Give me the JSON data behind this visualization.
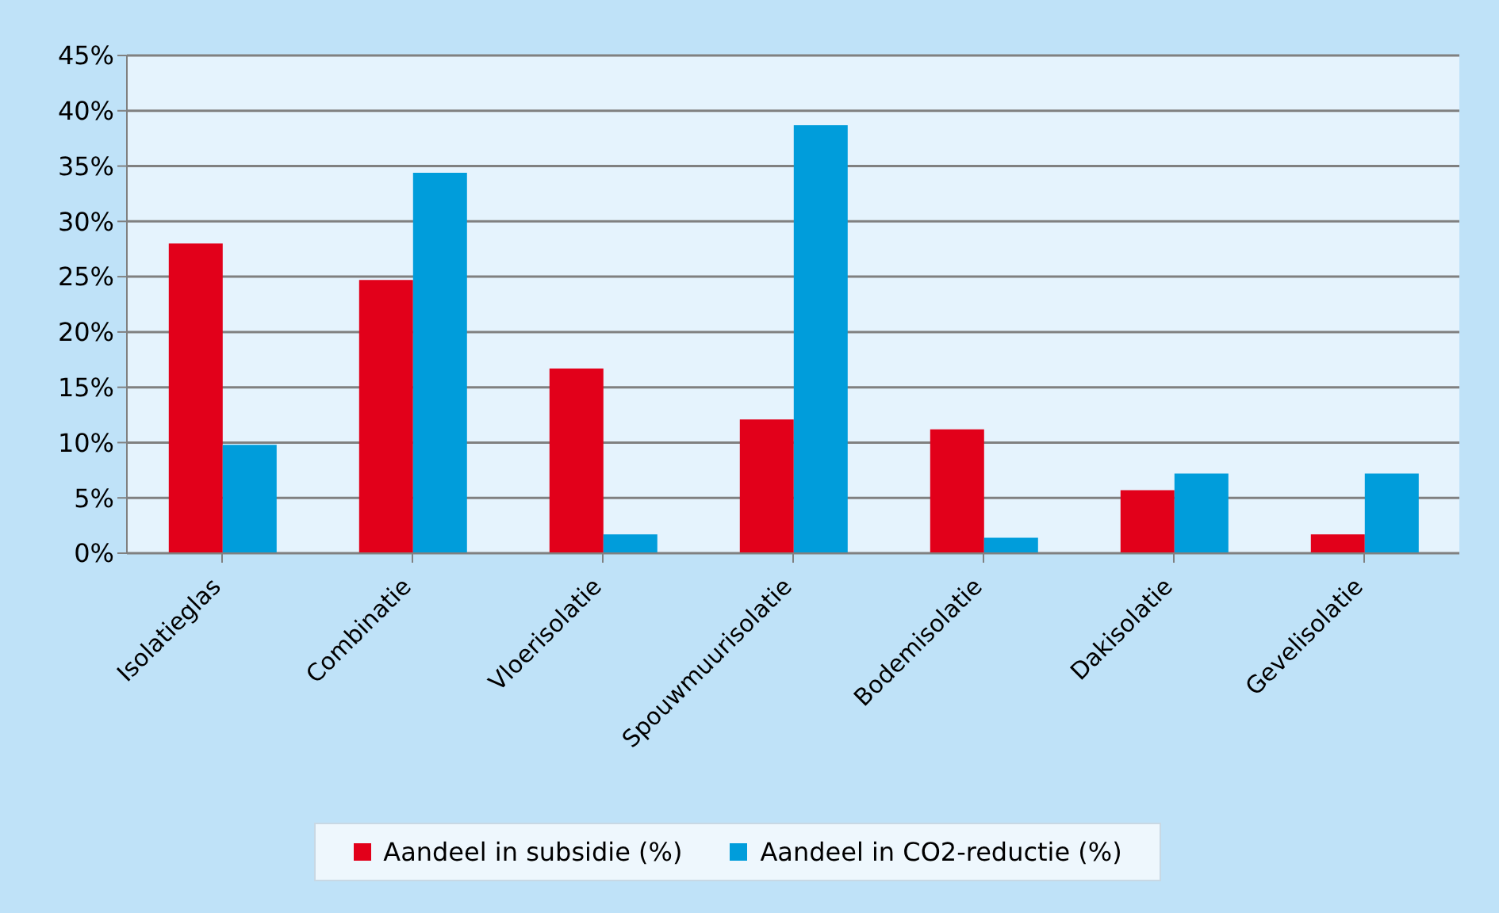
{
  "chart_data": {
    "type": "bar",
    "categories": [
      "Isolatieglas",
      "Combinatie",
      "Vloerisolatie",
      "Spouwmuurisolatie",
      "Bodemisolatie",
      "Dakisolatie",
      "Gevelisolatie"
    ],
    "series": [
      {
        "name": "Aandeel in subsidie (%)",
        "color": "#e2001a",
        "values": [
          28.0,
          24.7,
          16.7,
          12.1,
          11.2,
          5.7,
          1.7
        ]
      },
      {
        "name": "Aandeel in CO2-reductie (%)",
        "color": "#009ddb",
        "values": [
          9.8,
          34.4,
          1.7,
          38.7,
          1.4,
          7.2,
          7.2
        ]
      }
    ],
    "ylim": [
      0,
      45
    ],
    "yticks": [
      {
        "value": 0,
        "label": "0%"
      },
      {
        "value": 5,
        "label": "5%"
      },
      {
        "value": 10,
        "label": "10%"
      },
      {
        "value": 15,
        "label": "15%"
      },
      {
        "value": 20,
        "label": "20%"
      },
      {
        "value": 25,
        "label": "25%"
      },
      {
        "value": 30,
        "label": "30%"
      },
      {
        "value": 35,
        "label": "35%"
      },
      {
        "value": 40,
        "label": "40%"
      },
      {
        "value": 45,
        "label": "45%"
      }
    ],
    "grid": "y",
    "legend": "bottom"
  }
}
